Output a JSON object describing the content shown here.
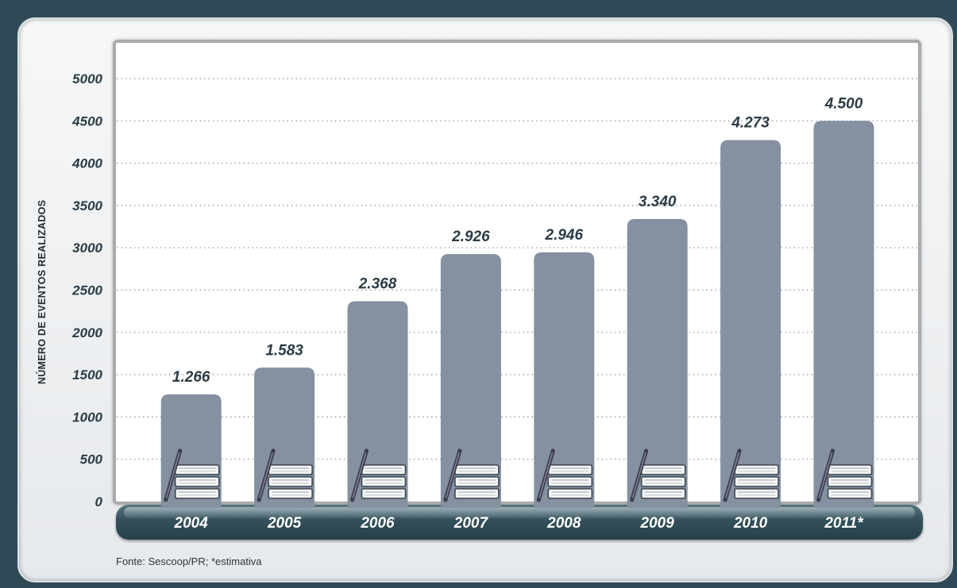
{
  "chart_data": {
    "type": "bar",
    "categories": [
      "2004",
      "2005",
      "2006",
      "2007",
      "2008",
      "2009",
      "2010",
      "2011*"
    ],
    "values": [
      1266,
      1583,
      2368,
      2926,
      2946,
      3340,
      4273,
      4500
    ],
    "value_labels": [
      "1.266",
      "1.583",
      "2.368",
      "2.926",
      "2.946",
      "3.340",
      "4.273",
      "4.500"
    ],
    "ylabel": "NÚMERO DE EVENTOS REALIZADOS",
    "ylim": [
      0,
      5000
    ],
    "yticks": [
      0,
      500,
      1000,
      1500,
      2000,
      2500,
      3000,
      3500,
      4000,
      4500,
      5000
    ],
    "grid": true,
    "legend": "none",
    "note": "Fonte: Sescoop/PR; *estimativa",
    "colors": {
      "bar": "#8590a0",
      "category_band": "#33505b",
      "background": "#2e4a57"
    }
  }
}
